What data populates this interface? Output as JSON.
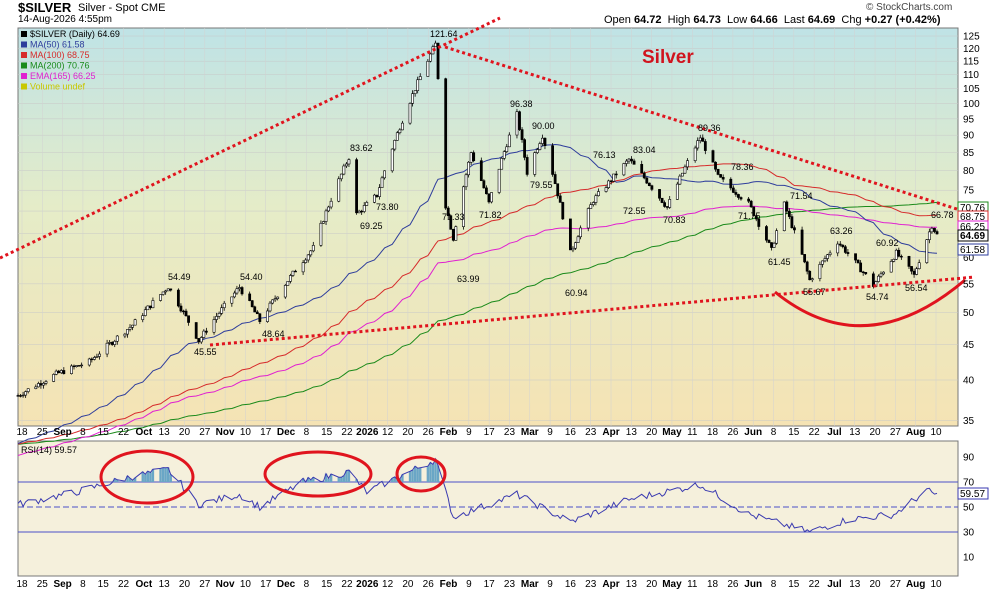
{
  "header": {
    "symbol": "$SILVER",
    "description": "Silver - Spot",
    "exchange": "CME",
    "date": "14-Aug-2026 4:55pm",
    "open_label": "Open",
    "open": "64.72",
    "high_label": "High",
    "high": "64.73",
    "low_label": "Low",
    "low": "64.66",
    "last_label": "Last",
    "last": "64.69",
    "chg_label": "Chg",
    "chg": "+0.27 (+0.42%)",
    "credit": "© StockCharts.com"
  },
  "chart_data": [
    {
      "type": "candlestick",
      "title": "Silver",
      "legend": [
        {
          "text": "$SILVER (Daily) 64.69",
          "color": "#000000"
        },
        {
          "text": "MA(50) 61.58",
          "color": "#2e3d9c"
        },
        {
          "text": "MA(100) 68.75",
          "color": "#d62b2b"
        },
        {
          "text": "MA(200) 70.76",
          "color": "#1a8a1a"
        },
        {
          "text": "EMA(165) 66.25",
          "color": "#e020d0"
        },
        {
          "text": "Volume undef",
          "color": "#c8c800"
        }
      ],
      "legend_position": "top-left",
      "y_scale": "log",
      "ylim": [
        35,
        127
      ],
      "y_ticks": [
        35,
        40,
        45,
        50,
        55,
        60,
        65,
        70,
        75,
        80,
        85,
        90,
        95,
        100,
        105,
        110,
        115,
        120,
        125
      ],
      "x_tick_labels": [
        "18",
        "25",
        "Sep",
        "8",
        "15",
        "22",
        "Oct",
        "13",
        "20",
        "27",
        "Nov",
        "10",
        "17",
        "Dec",
        "8",
        "15",
        "22",
        "2026",
        "12",
        "20",
        "26",
        "Feb",
        "9",
        "17",
        "23",
        "Mar",
        "9",
        "16",
        "23",
        "Apr",
        "13",
        "20",
        "May",
        "11",
        "18",
        "26",
        "Jun",
        "8",
        "15",
        "22",
        "Jul",
        "13",
        "20",
        "27",
        "Aug",
        "10"
      ],
      "price_path": [
        {
          "date": "2025-08-18",
          "value": 38.0
        },
        {
          "date": "2025-09-02",
          "value": 40.8
        },
        {
          "date": "2025-09-15",
          "value": 42.5
        },
        {
          "date": "2025-10-02",
          "value": 48.0
        },
        {
          "date": "2025-10-16",
          "value": 54.49
        },
        {
          "date": "2025-10-28",
          "value": 45.55
        },
        {
          "date": "2025-11-13",
          "value": 54.4
        },
        {
          "date": "2025-11-21",
          "value": 48.64
        },
        {
          "date": "2025-12-12",
          "value": 62.0
        },
        {
          "date": "2025-12-26",
          "value": 83.62
        },
        {
          "date": "2025-12-29",
          "value": 69.25
        },
        {
          "date": "2026-01-06",
          "value": 73.8
        },
        {
          "date": "2026-01-29",
          "value": 121.64
        },
        {
          "date": "2026-02-02",
          "value": 71.33
        },
        {
          "date": "2026-02-05",
          "value": 63.99
        },
        {
          "date": "2026-02-12",
          "value": 85.0
        },
        {
          "date": "2026-02-19",
          "value": 71.82
        },
        {
          "date": "2026-03-02",
          "value": 96.38
        },
        {
          "date": "2026-03-06",
          "value": 79.55
        },
        {
          "date": "2026-03-12",
          "value": 90.0
        },
        {
          "date": "2026-03-23",
          "value": 60.94
        },
        {
          "date": "2026-04-01",
          "value": 72.55
        },
        {
          "date": "2026-04-06",
          "value": 76.13
        },
        {
          "date": "2026-04-15",
          "value": 83.04
        },
        {
          "date": "2026-04-30",
          "value": 70.83
        },
        {
          "date": "2026-05-13",
          "value": 89.36
        },
        {
          "date": "2026-05-20",
          "value": 78.36
        },
        {
          "date": "2026-06-01",
          "value": 71.75
        },
        {
          "date": "2026-06-15",
          "value": 71.54
        },
        {
          "date": "2026-06-10",
          "value": 61.45
        },
        {
          "date": "2026-06-25",
          "value": 55.67
        },
        {
          "date": "2026-07-06",
          "value": 63.26
        },
        {
          "date": "2026-07-20",
          "value": 54.74
        },
        {
          "date": "2026-07-29",
          "value": 60.92
        },
        {
          "date": "2026-08-05",
          "value": 56.54
        },
        {
          "date": "2026-08-12",
          "value": 66.78
        },
        {
          "date": "2026-08-14",
          "value": 64.69
        }
      ],
      "annotations": [
        "121.64",
        "83.62",
        "73.80",
        "69.25",
        "54.49",
        "54.40",
        "48.64",
        "45.55",
        "71.33",
        "63.99",
        "71.82",
        "96.38",
        "90.00",
        "79.55",
        "60.94",
        "76.13",
        "72.55",
        "83.04",
        "70.83",
        "89.36",
        "78.36",
        "71.75",
        "71.54",
        "61.45",
        "55.67",
        "63.26",
        "54.74",
        "60.92",
        "56.54",
        "66.78"
      ],
      "price_tags": [
        "70.76",
        "68.75",
        "66.25",
        "64.69",
        "61.58"
      ],
      "overlays": [
        "rising resistance line",
        "falling resistance line",
        "rising support line",
        "rounded bottom arc"
      ]
    },
    {
      "type": "line",
      "title": "RSI(14) 59.57",
      "ylim": [
        0,
        100
      ],
      "y_ticks": [
        10,
        30,
        50,
        70,
        90
      ],
      "reference_lines": [
        30,
        50,
        70
      ],
      "last_value": "59.57",
      "series": [
        {
          "name": "RSI(14)",
          "points": [
            {
              "date": "2025-08-18",
              "value": 52
            },
            {
              "date": "2025-09-10",
              "value": 62
            },
            {
              "date": "2025-10-01",
              "value": 74
            },
            {
              "date": "2025-10-16",
              "value": 80
            },
            {
              "date": "2025-10-28",
              "value": 52
            },
            {
              "date": "2025-11-13",
              "value": 60
            },
            {
              "date": "2025-11-21",
              "value": 50
            },
            {
              "date": "2025-12-08",
              "value": 70
            },
            {
              "date": "2025-12-26",
              "value": 78
            },
            {
              "date": "2026-01-02",
              "value": 62
            },
            {
              "date": "2026-01-29",
              "value": 88
            },
            {
              "date": "2026-02-05",
              "value": 42
            },
            {
              "date": "2026-03-02",
              "value": 60
            },
            {
              "date": "2026-03-23",
              "value": 38
            },
            {
              "date": "2026-04-15",
              "value": 56
            },
            {
              "date": "2026-05-13",
              "value": 68
            },
            {
              "date": "2026-06-01",
              "value": 44
            },
            {
              "date": "2026-06-25",
              "value": 30
            },
            {
              "date": "2026-07-10",
              "value": 40
            },
            {
              "date": "2026-07-28",
              "value": 44
            },
            {
              "date": "2026-08-10",
              "value": 63
            },
            {
              "date": "2026-08-14",
              "value": 59.57
            }
          ]
        }
      ],
      "x_tick_labels": [
        "18",
        "25",
        "Sep",
        "8",
        "15",
        "22",
        "Oct",
        "13",
        "20",
        "27",
        "Nov",
        "10",
        "17",
        "Dec",
        "8",
        "15",
        "22",
        "2026",
        "12",
        "20",
        "26",
        "Feb",
        "9",
        "17",
        "23",
        "Mar",
        "9",
        "16",
        "23",
        "Apr",
        "13",
        "20",
        "May",
        "11",
        "18",
        "26",
        "Jun",
        "8",
        "15",
        "22",
        "Jul",
        "13",
        "20",
        "27",
        "Aug",
        "10"
      ]
    }
  ]
}
